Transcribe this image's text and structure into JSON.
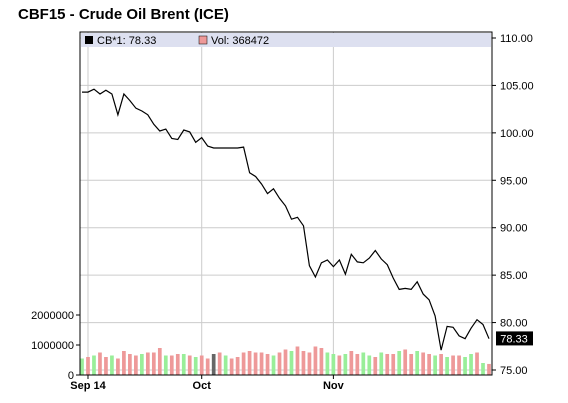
{
  "chart_data": {
    "type": "line",
    "title": "CBF15 - Crude Oil Brent (ICE)",
    "legend": {
      "price": "CB*1: 78.33",
      "volume": "Vol: 368472"
    },
    "last_price_label": "78.33",
    "last_price": 78.33,
    "price_axis": {
      "ylim": [
        75,
        110
      ],
      "ticks": [
        75,
        80,
        85,
        90,
        95,
        100,
        105,
        110
      ],
      "tick_labels": [
        "75.00",
        "80.00",
        "85.00",
        "90.00",
        "95.00",
        "100.00",
        "105.00",
        "110.00"
      ]
    },
    "volume_axis": {
      "ylim": [
        0,
        2300000
      ],
      "ticks": [
        0,
        1000000,
        2000000
      ],
      "tick_labels": [
        "0",
        "1000000",
        "2000000"
      ]
    },
    "x_axis": {
      "tick_labels": [
        "Sep 14",
        "Oct",
        "Nov"
      ],
      "tick_index": [
        1,
        20,
        42
      ]
    },
    "series": [
      {
        "kind": "price",
        "values": [
          104.3,
          104.3,
          104.6,
          104.1,
          104.5,
          104.1,
          101.9,
          104.1,
          103.4,
          102.6,
          102.3,
          101.9,
          100.9,
          100.2,
          100.4,
          99.4,
          99.3,
          100.3,
          100.1,
          99.0,
          99.5,
          98.6,
          98.4,
          98.4,
          98.4,
          98.4,
          98.4,
          98.5,
          95.8,
          95.4,
          94.6,
          93.6,
          94.1,
          93.1,
          92.3,
          90.9,
          91.1,
          90.2,
          86.0,
          84.8,
          86.3,
          86.6,
          85.9,
          86.6,
          85.1,
          87.2,
          86.4,
          86.3,
          86.8,
          87.6,
          86.7,
          86.1,
          84.7,
          83.5,
          83.6,
          83.5,
          84.3,
          83.0,
          82.4,
          80.7,
          77.1,
          79.6,
          79.5,
          78.6,
          78.3,
          79.4,
          80.3,
          79.8,
          78.3
        ],
        "colors": [
          "#000000"
        ]
      },
      {
        "kind": "volume",
        "values": [
          550000,
          600000,
          650000,
          750000,
          600000,
          650000,
          550000,
          800000,
          700000,
          650000,
          700000,
          750000,
          750000,
          900000,
          650000,
          650000,
          700000,
          700000,
          650000,
          600000,
          650000,
          550000,
          700000,
          750000,
          650000,
          550000,
          600000,
          750000,
          800000,
          750000,
          750000,
          700000,
          650000,
          750000,
          850000,
          800000,
          950000,
          800000,
          750000,
          950000,
          900000,
          750000,
          700000,
          650000,
          700000,
          800000,
          700000,
          750000,
          650000,
          600000,
          750000,
          700000,
          700000,
          800000,
          850000,
          700000,
          800000,
          750000,
          700000,
          650000,
          700000,
          600000,
          650000,
          650000,
          600000,
          700000,
          750000,
          400000,
          368472
        ],
        "bar_colors": [
          "#99ee99",
          "#ee9999",
          "#99ee99",
          "#ee9999",
          "#ee9999",
          "#99ee99",
          "#ee9999",
          "#ee9999",
          "#ee9999",
          "#ee9999",
          "#99ee99",
          "#ee9999",
          "#ee9999",
          "#ee9999",
          "#99ee99",
          "#ee9999",
          "#ee9999",
          "#99ee99",
          "#ee9999",
          "#99ee99",
          "#ee9999",
          "#ee9999",
          "#666666",
          "#ee9999",
          "#99ee99",
          "#ee9999",
          "#ee9999",
          "#ee9999",
          "#ee9999",
          "#ee9999",
          "#ee9999",
          "#ee9999",
          "#99ee99",
          "#ee9999",
          "#ee9999",
          "#99ee99",
          "#ee9999",
          "#ee9999",
          "#ee9999",
          "#ee9999",
          "#ee9999",
          "#99ee99",
          "#99ee99",
          "#ee9999",
          "#99ee99",
          "#ee9999",
          "#ee9999",
          "#99ee99",
          "#99ee99",
          "#ee9999",
          "#99ee99",
          "#ee9999",
          "#ee9999",
          "#99ee99",
          "#ee9999",
          "#ee9999",
          "#99ee99",
          "#ee9999",
          "#ee9999",
          "#99ee99",
          "#ee9999",
          "#99ee99",
          "#ee9999",
          "#ee9999",
          "#99ee99",
          "#99ee99",
          "#ee9999",
          "#99ee99",
          "#ee9999"
        ]
      }
    ],
    "colors": {
      "legend_band": "#dde0f0",
      "price_swatch": "#000000",
      "volume_swatch": "#ee9999",
      "last_price_box": "#000000",
      "grid": "#cccccc"
    },
    "grid": true
  }
}
